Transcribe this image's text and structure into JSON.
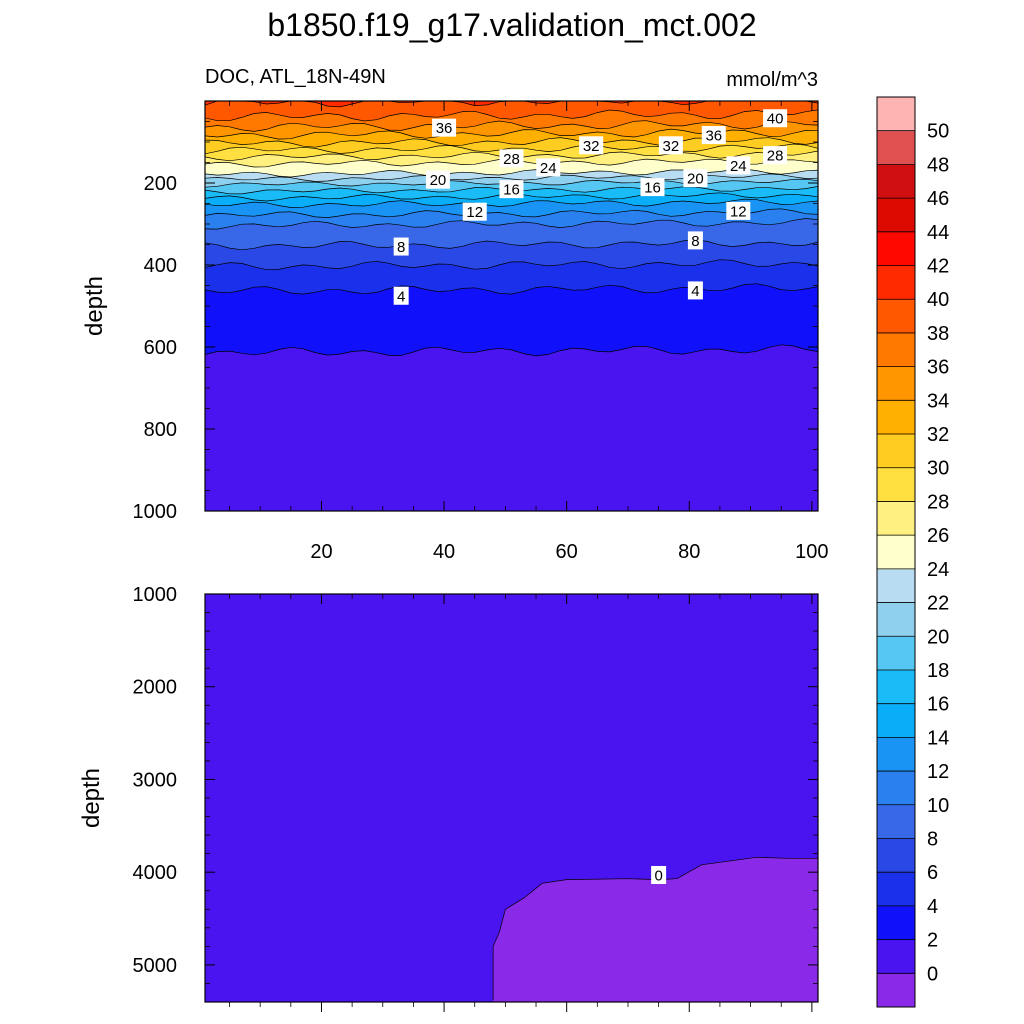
{
  "figure": {
    "title": "b1850.f19_g17.validation_mct.002",
    "left_subtitle": "DOC, ATL_18N-49N",
    "right_subtitle": "mmol/m^3"
  },
  "chart_data": [
    {
      "type": "contour",
      "panel": "upper",
      "variable": "DOC",
      "region": "ATL_18N-49N",
      "units": "mmol/m^3",
      "xlabel": "",
      "ylabel": "depth",
      "xlim": [
        1,
        101
      ],
      "ylim": [
        1000,
        0
      ],
      "x_ticks": [
        20,
        40,
        60,
        80,
        100
      ],
      "y_ticks": [
        200,
        400,
        600,
        800,
        1000
      ],
      "contour_interval": 2,
      "contour_labels": [
        {
          "value": 40,
          "x": 94,
          "depth": 42
        },
        {
          "value": 36,
          "x": 40,
          "depth": 65
        },
        {
          "value": 36,
          "x": 84,
          "depth": 83
        },
        {
          "value": 32,
          "x": 64,
          "depth": 108
        },
        {
          "value": 32,
          "x": 77,
          "depth": 108
        },
        {
          "value": 28,
          "x": 51,
          "depth": 140
        },
        {
          "value": 28,
          "x": 94,
          "depth": 132
        },
        {
          "value": 24,
          "x": 57,
          "depth": 162
        },
        {
          "value": 24,
          "x": 88,
          "depth": 157
        },
        {
          "value": 20,
          "x": 39,
          "depth": 192
        },
        {
          "value": 20,
          "x": 81,
          "depth": 188
        },
        {
          "value": 16,
          "x": 51,
          "depth": 215
        },
        {
          "value": 16,
          "x": 74,
          "depth": 210
        },
        {
          "value": 12,
          "x": 45,
          "depth": 270
        },
        {
          "value": 12,
          "x": 88,
          "depth": 268
        },
        {
          "value": 8,
          "x": 33,
          "depth": 355
        },
        {
          "value": 8,
          "x": 81,
          "depth": 340
        },
        {
          "value": 4,
          "x": 33,
          "depth": 475
        },
        {
          "value": 4,
          "x": 81,
          "depth": 462
        }
      ],
      "profile_points": [
        {
          "depth": 0,
          "value": 40
        },
        {
          "depth": 20,
          "value": 39
        },
        {
          "depth": 50,
          "value": 37
        },
        {
          "depth": 100,
          "value": 32
        },
        {
          "depth": 150,
          "value": 26
        },
        {
          "depth": 175,
          "value": 24
        },
        {
          "depth": 200,
          "value": 20
        },
        {
          "depth": 250,
          "value": 14
        },
        {
          "depth": 300,
          "value": 10
        },
        {
          "depth": 350,
          "value": 8
        },
        {
          "depth": 400,
          "value": 6
        },
        {
          "depth": 460,
          "value": 4
        },
        {
          "depth": 610,
          "value": 2
        },
        {
          "depth": 800,
          "value": 1
        },
        {
          "depth": 1000,
          "value": 0.5
        }
      ]
    },
    {
      "type": "contour",
      "panel": "lower",
      "variable": "DOC",
      "region": "ATL_18N-49N",
      "units": "mmol/m^3",
      "xlabel": "",
      "ylabel": "depth",
      "xlim": [
        1,
        101
      ],
      "ylim": [
        5400,
        1000
      ],
      "y_ticks": [
        1000,
        2000,
        3000,
        4000,
        5000
      ],
      "contour_labels": [
        {
          "value": 0,
          "x": 75,
          "depth": 4030
        }
      ],
      "zero_contour": [
        {
          "x": 48,
          "depth": 5380
        },
        {
          "x": 48,
          "depth": 4800
        },
        {
          "x": 49,
          "depth": 4650
        },
        {
          "x": 50,
          "depth": 4400
        },
        {
          "x": 53,
          "depth": 4280
        },
        {
          "x": 56,
          "depth": 4120
        },
        {
          "x": 60,
          "depth": 4080
        },
        {
          "x": 70,
          "depth": 4070
        },
        {
          "x": 75,
          "depth": 4080
        },
        {
          "x": 78,
          "depth": 4070
        },
        {
          "x": 82,
          "depth": 3920
        },
        {
          "x": 91,
          "depth": 3840
        },
        {
          "x": 96,
          "depth": 3850
        },
        {
          "x": 101,
          "depth": 3850
        }
      ],
      "region_values": {
        "above_zero_contour": "0 to 2",
        "below_zero_contour": "< 0"
      }
    }
  ],
  "colorbar": {
    "levels": [
      0,
      2,
      4,
      6,
      8,
      10,
      12,
      14,
      16,
      18,
      20,
      22,
      24,
      26,
      28,
      30,
      32,
      34,
      36,
      38,
      40,
      42,
      44,
      46,
      48,
      50
    ],
    "labels": [
      "0",
      "2",
      "4",
      "6",
      "8",
      "10",
      "12",
      "14",
      "16",
      "18",
      "20",
      "22",
      "24",
      "26",
      "28",
      "30",
      "32",
      "34",
      "36",
      "38",
      "40",
      "42",
      "44",
      "46",
      "48",
      "50"
    ],
    "colors": [
      "#8a2ae8",
      "#4a14f0",
      "#1010fa",
      "#1a30ea",
      "#2a48e6",
      "#3868e8",
      "#2a80ee",
      "#1a94f4",
      "#0aaef8",
      "#1abcf8",
      "#56c6f2",
      "#8ed0ee",
      "#b8dcf2",
      "#ffffcc",
      "#fff080",
      "#ffe040",
      "#ffcc22",
      "#ffb000",
      "#ff9600",
      "#ff7800",
      "#ff5800",
      "#ff2a00",
      "#ff0800",
      "#dc0a00",
      "#d01010",
      "#e05050",
      "#ffb4b4"
    ]
  }
}
